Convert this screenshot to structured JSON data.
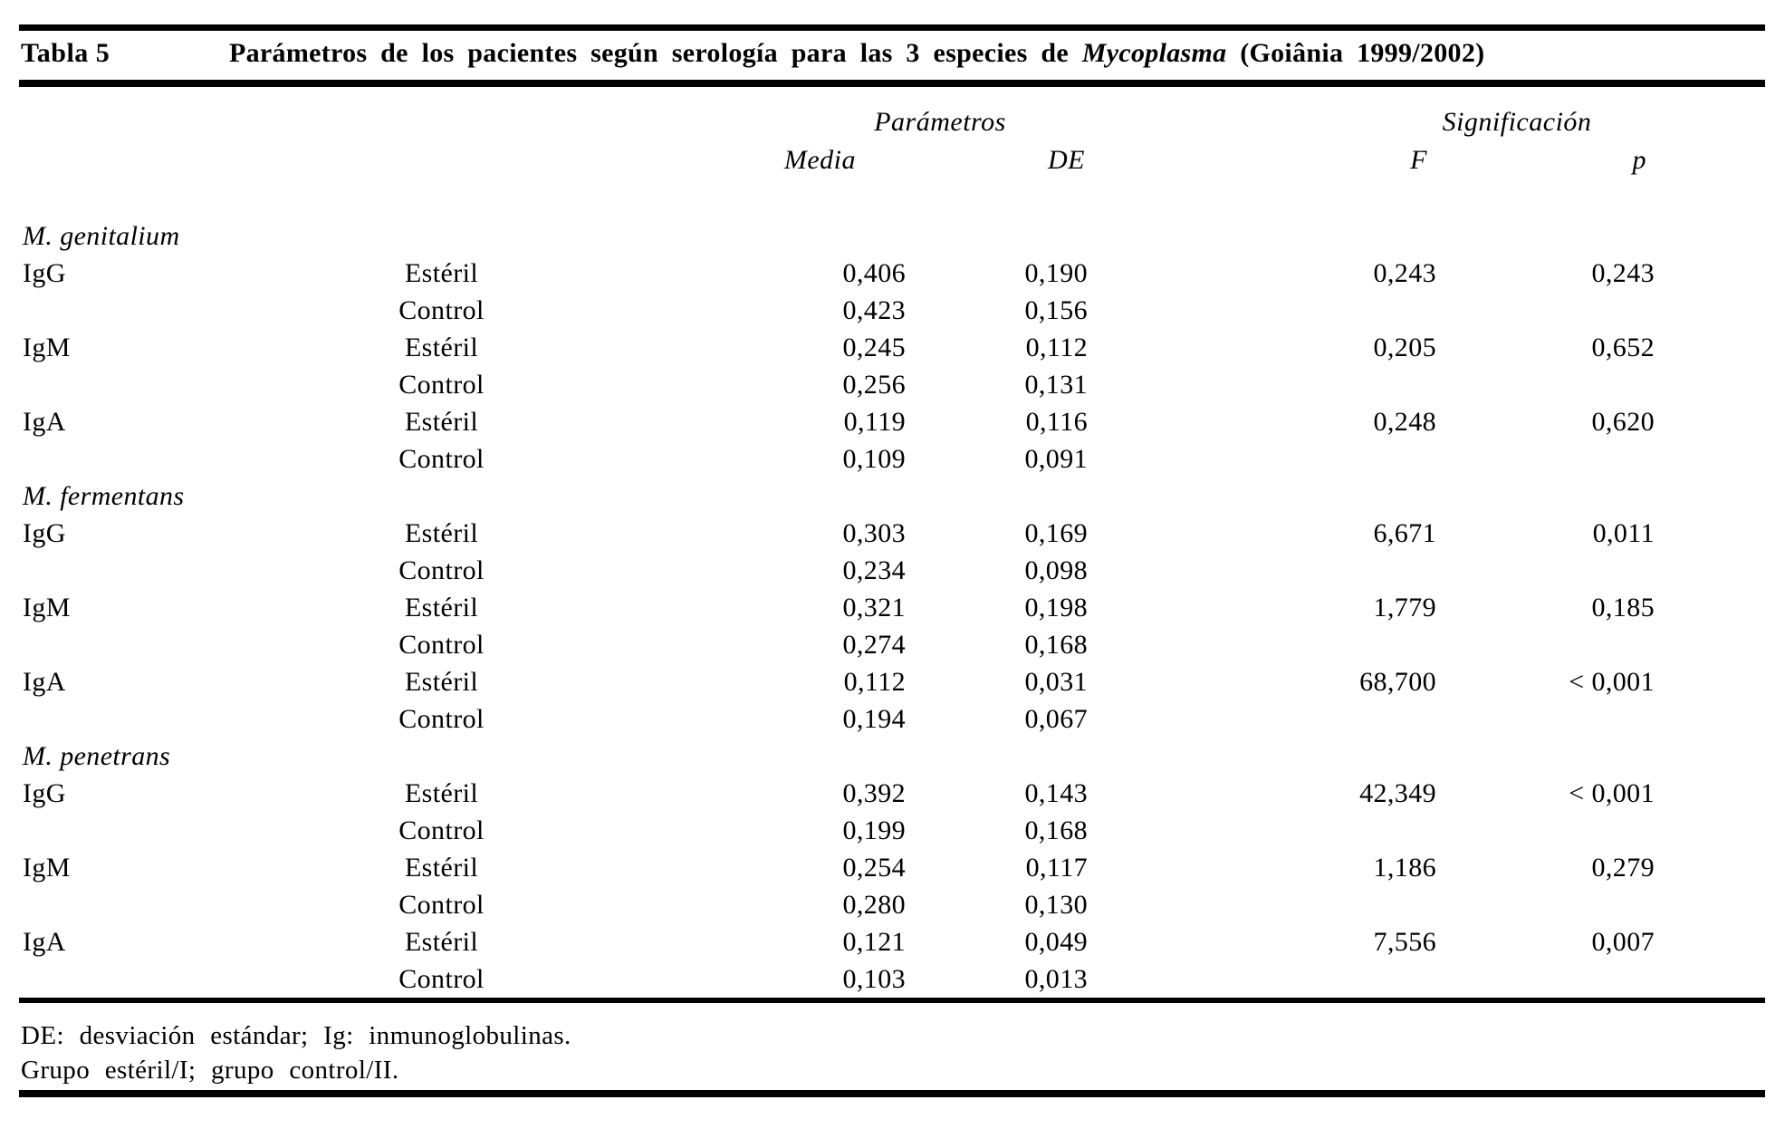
{
  "table": {
    "label": "Tabla 5",
    "title_prefix": "Parámetros de los pacientes según serología para las 3 especies de ",
    "title_italic": "Mycoplasma",
    "title_suffix": " (Goiânia 1999/2002)",
    "col_groups": [
      {
        "label": "Parámetros"
      },
      {
        "label": "Significación"
      }
    ],
    "sub_headers": [
      "Media",
      "DE",
      "F",
      "p"
    ],
    "sections": [
      {
        "species": "M. genitalium",
        "rows": [
          {
            "ig": "IgG",
            "group": "Estéril",
            "media": "0,406",
            "de": "0,190",
            "f": "0,243",
            "p": "0,243"
          },
          {
            "ig": "",
            "group": "Control",
            "media": "0,423",
            "de": "0,156",
            "f": "",
            "p": ""
          },
          {
            "ig": "IgM",
            "group": "Estéril",
            "media": "0,245",
            "de": "0,112",
            "f": "0,205",
            "p": "0,652"
          },
          {
            "ig": "",
            "group": "Control",
            "media": "0,256",
            "de": "0,131",
            "f": "",
            "p": ""
          },
          {
            "ig": "IgA",
            "group": "Estéril",
            "media": "0,119",
            "de": "0,116",
            "f": "0,248",
            "p": "0,620"
          },
          {
            "ig": "",
            "group": "Control",
            "media": "0,109",
            "de": "0,091",
            "f": "",
            "p": ""
          }
        ]
      },
      {
        "species": "M. fermentans",
        "rows": [
          {
            "ig": "IgG",
            "group": "Estéril",
            "media": "0,303",
            "de": "0,169",
            "f": "6,671",
            "p": "0,011"
          },
          {
            "ig": "",
            "group": "Control",
            "media": "0,234",
            "de": "0,098",
            "f": "",
            "p": ""
          },
          {
            "ig": "IgM",
            "group": "Estéril",
            "media": "0,321",
            "de": "0,198",
            "f": "1,779",
            "p": "0,185"
          },
          {
            "ig": "",
            "group": "Control",
            "media": "0,274",
            "de": "0,168",
            "f": "",
            "p": ""
          },
          {
            "ig": "IgA",
            "group": "Estéril",
            "media": "0,112",
            "de": "0,031",
            "f": "68,700",
            "p": "< 0,001"
          },
          {
            "ig": "",
            "group": "Control",
            "media": "0,194",
            "de": "0,067",
            "f": "",
            "p": ""
          }
        ]
      },
      {
        "species": "M. penetrans",
        "rows": [
          {
            "ig": "IgG",
            "group": "Estéril",
            "media": "0,392",
            "de": "0,143",
            "f": "42,349",
            "p": "< 0,001"
          },
          {
            "ig": "",
            "group": "Control",
            "media": "0,199",
            "de": "0,168",
            "f": "",
            "p": ""
          },
          {
            "ig": "IgM",
            "group": "Estéril",
            "media": "0,254",
            "de": "0,117",
            "f": "1,186",
            "p": "0,279"
          },
          {
            "ig": "",
            "group": "Control",
            "media": "0,280",
            "de": "0,130",
            "f": "",
            "p": ""
          },
          {
            "ig": "IgA",
            "group": "Estéril",
            "media": "0,121",
            "de": "0,049",
            "f": "7,556",
            "p": "0,007"
          },
          {
            "ig": "",
            "group": "Control",
            "media": "0,103",
            "de": "0,013",
            "f": "",
            "p": ""
          }
        ]
      }
    ],
    "footnotes": [
      "DE: desviación estándar; Ig: inmunoglobulinas.",
      "Grupo estéril/I; grupo control/II."
    ]
  }
}
